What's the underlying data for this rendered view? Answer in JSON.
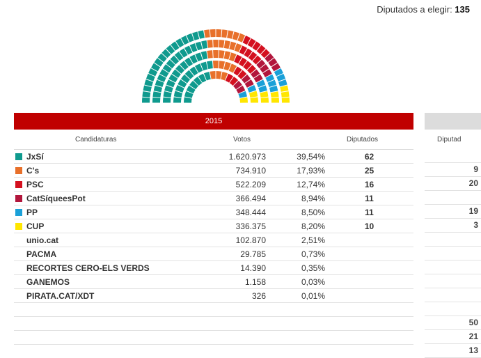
{
  "header": {
    "label": "Diputados a elegir: ",
    "total": "135"
  },
  "section": {
    "year_label": "2015"
  },
  "columns": {
    "candidaturas": "Candidaturas",
    "votos": "Votos",
    "diputados": "Diputados"
  },
  "next_column": {
    "header": "Diputad",
    "cells": [
      "",
      "9",
      "20",
      "",
      "19",
      "3",
      "",
      "",
      "",
      "",
      "",
      "",
      "50",
      "21",
      "13"
    ]
  },
  "parties": [
    {
      "name": "JxSí",
      "votes": "1.620.973",
      "pct": "39,54%",
      "seats": "62",
      "color": "#0f9a8e"
    },
    {
      "name": "C's",
      "votes": "734.910",
      "pct": "17,93%",
      "seats": "25",
      "color": "#e8702a"
    },
    {
      "name": "PSC",
      "votes": "522.209",
      "pct": "12,74%",
      "seats": "16",
      "color": "#d4101f"
    },
    {
      "name": "CatSíqueesPot",
      "votes": "366.494",
      "pct": "8,94%",
      "seats": "11",
      "color": "#b2163c"
    },
    {
      "name": "PP",
      "votes": "348.444",
      "pct": "8,50%",
      "seats": "11",
      "color": "#1aa0d8"
    },
    {
      "name": "CUP",
      "votes": "336.375",
      "pct": "8,20%",
      "seats": "10",
      "color": "#ffe600"
    },
    {
      "name": "unio.cat",
      "votes": "102.870",
      "pct": "2,51%",
      "seats": ""
    },
    {
      "name": "PACMA",
      "votes": "29.785",
      "pct": "0,73%",
      "seats": ""
    },
    {
      "name": "RECORTES CERO-ELS VERDS",
      "votes": "14.390",
      "pct": "0,35%",
      "seats": ""
    },
    {
      "name": "GANEMOS",
      "votes": "1.158",
      "pct": "0,03%",
      "seats": ""
    },
    {
      "name": "PIRATA.CAT/XDT",
      "votes": "326",
      "pct": "0,01%",
      "seats": ""
    },
    {
      "name": "",
      "votes": "",
      "pct": "",
      "seats": ""
    },
    {
      "name": "",
      "votes": "",
      "pct": "",
      "seats": ""
    },
    {
      "name": "",
      "votes": "",
      "pct": "",
      "seats": ""
    }
  ]
}
